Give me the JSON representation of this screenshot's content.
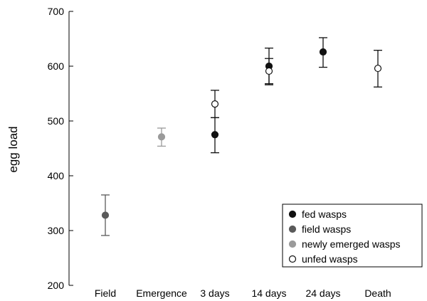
{
  "chart_data": {
    "type": "scatter",
    "title": "",
    "xlabel": "",
    "ylabel": "egg load",
    "ylim": [
      200,
      700
    ],
    "yticks": [
      200,
      300,
      400,
      500,
      600,
      700
    ],
    "categories": [
      "Field",
      "Emergence",
      "3 days",
      "14 days",
      "24 days",
      "Death"
    ],
    "legend_position": "bottom-right",
    "series": [
      {
        "name": "fed wasps",
        "marker": "filled",
        "color": "#111111",
        "points": [
          {
            "x": "3 days",
            "y": 475,
            "lo": 442,
            "hi": 506
          },
          {
            "x": "14 days",
            "y": 600,
            "lo": 568,
            "hi": 633
          },
          {
            "x": "24 days",
            "y": 626,
            "lo": 598,
            "hi": 652
          }
        ]
      },
      {
        "name": "field wasps",
        "marker": "filled",
        "color": "#5a5a5a",
        "points": [
          {
            "x": "Field",
            "y": 328,
            "lo": 291,
            "hi": 365
          }
        ]
      },
      {
        "name": "newly emerged wasps",
        "marker": "filled",
        "color": "#9a9a9a",
        "points": [
          {
            "x": "Emergence",
            "y": 471,
            "lo": 454,
            "hi": 487
          }
        ]
      },
      {
        "name": "unfed wasps",
        "marker": "open",
        "color": "#111111",
        "points": [
          {
            "x": "3 days",
            "y": 531,
            "lo": 506,
            "hi": 556
          },
          {
            "x": "14 days",
            "y": 591,
            "lo": 566,
            "hi": 614
          },
          {
            "x": "Death",
            "y": 596,
            "lo": 562,
            "hi": 629
          }
        ]
      }
    ]
  }
}
